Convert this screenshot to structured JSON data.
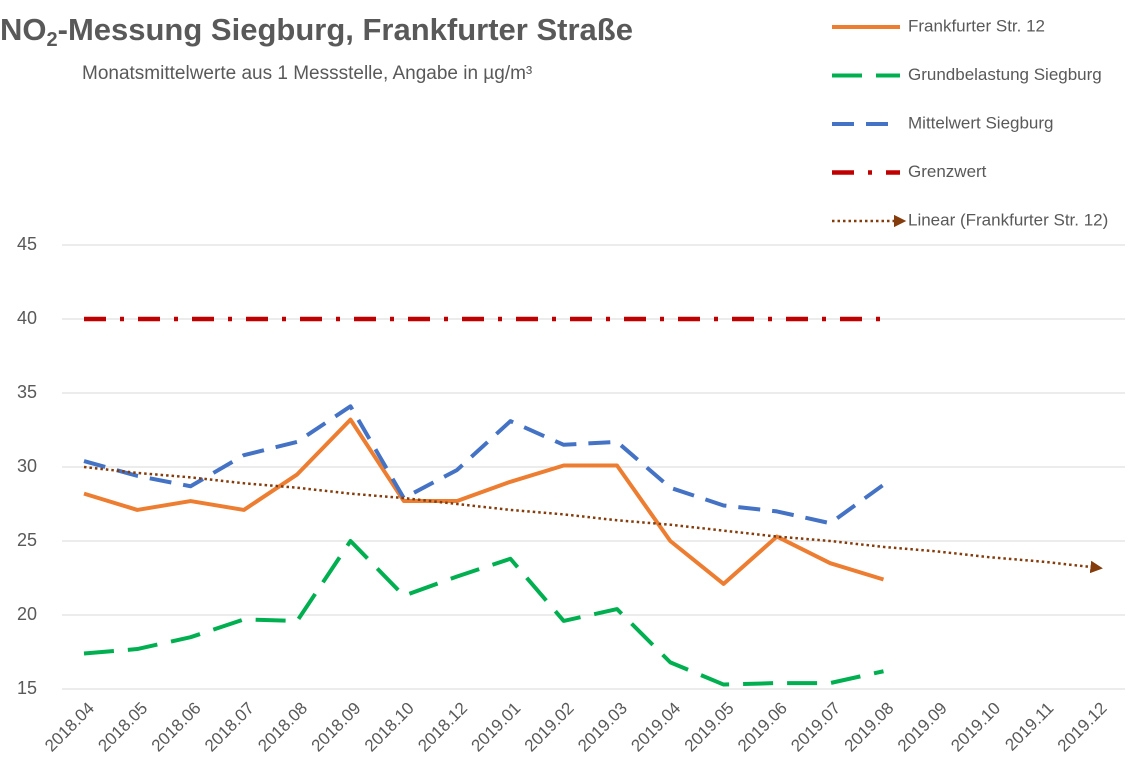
{
  "chart_data": {
    "type": "line",
    "title": {
      "main": "NO",
      "subscript": "2",
      "rest": "-Messung Siegburg, Frankfurter Straße"
    },
    "subtitle": "Monatsmittelwerte aus 1 Messstelle, Angabe in µg/m³",
    "categories": [
      "2018.04",
      "2018.05",
      "2018.06",
      "2018.07",
      "2018.08",
      "2018.09",
      "2018.10",
      "2018.12",
      "2019.01",
      "2019.02",
      "2019.03",
      "2019.04",
      "2019.05",
      "2019.06",
      "2019.07",
      "2019.08",
      "2019.09",
      "2019.10",
      "2019.11",
      "2019.12"
    ],
    "series": [
      {
        "name": "Frankfurter Str. 12",
        "color": "#ED7D31",
        "dash": "solid",
        "values": [
          28.2,
          27.1,
          27.7,
          27.1,
          29.5,
          33.2,
          27.7,
          27.7,
          29.0,
          30.1,
          30.1,
          25.0,
          22.1,
          25.3,
          23.5,
          22.4,
          null,
          null,
          null,
          null
        ]
      },
      {
        "name": "Grundbelastung Siegburg",
        "color": "#00B050",
        "dash": "long-dash",
        "values": [
          17.4,
          17.7,
          18.5,
          19.7,
          19.6,
          25.0,
          21.3,
          22.6,
          23.8,
          19.6,
          20.4,
          16.8,
          15.3,
          15.4,
          15.4,
          16.2,
          null,
          null,
          null,
          null
        ]
      },
      {
        "name": "Mittelwert Siegburg",
        "color": "#4472C4",
        "dash": "dash",
        "values": [
          30.4,
          29.4,
          28.7,
          30.8,
          31.7,
          34.1,
          27.9,
          29.8,
          33.1,
          31.5,
          31.7,
          28.6,
          27.4,
          27.0,
          26.2,
          28.8,
          null,
          null,
          null,
          null
        ]
      },
      {
        "name": "Grenzwert",
        "color": "#C00000",
        "dash": "dash-dot",
        "values": [
          40,
          40,
          40,
          40,
          40,
          40,
          40,
          40,
          40,
          40,
          40,
          40,
          40,
          40,
          40,
          40,
          null,
          null,
          null,
          null
        ]
      },
      {
        "name": "Linear (Frankfurter Str. 12)",
        "color": "#843C0C",
        "dash": "dot-arrow",
        "values": [
          30.0,
          29.6,
          29.3,
          28.9,
          28.6,
          28.2,
          27.9,
          27.5,
          27.1,
          26.8,
          26.4,
          26.1,
          25.7,
          25.3,
          25.0,
          24.6,
          24.3,
          23.9,
          23.6,
          23.2
        ]
      }
    ],
    "ylim": [
      15,
      45
    ],
    "yticks": [
      15,
      20,
      25,
      30,
      35,
      40,
      45
    ],
    "grid": true,
    "legend": "top-right"
  }
}
